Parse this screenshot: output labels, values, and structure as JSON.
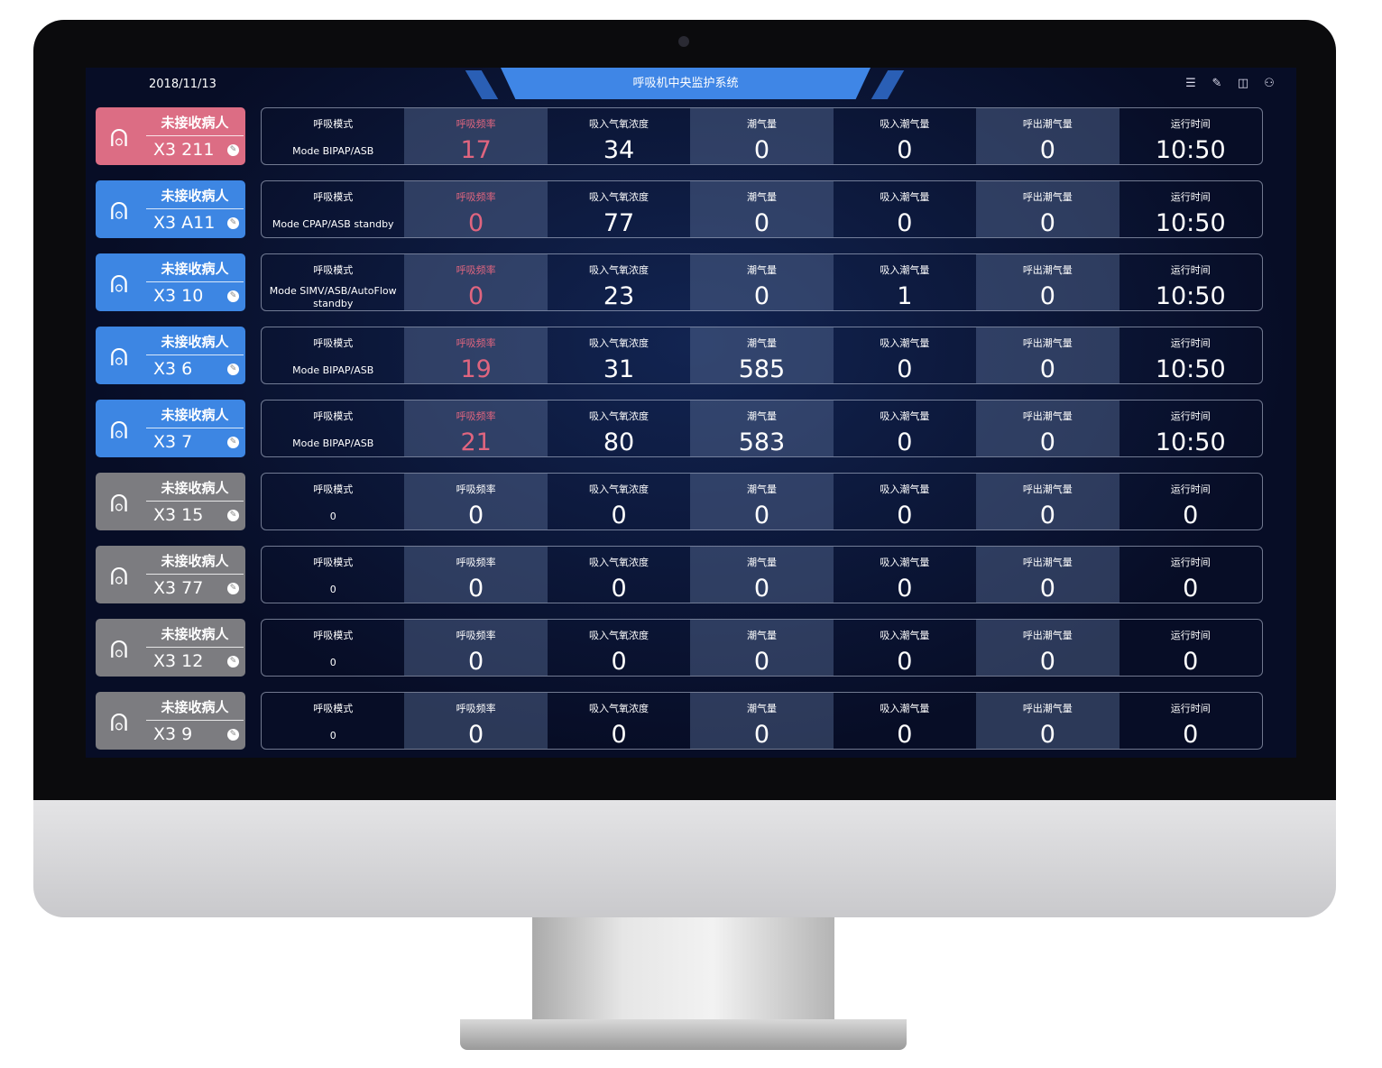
{
  "header": {
    "date": "2018/11/13",
    "title": "呼吸机中央监护系统",
    "icons": [
      "list-icon",
      "edit-icon",
      "layout-icon",
      "user-icon"
    ]
  },
  "labels": [
    "呼吸模式",
    "呼吸频率",
    "吸入气氧浓度",
    "潮气量",
    "吸入潮气量",
    "呼出潮气量",
    "运行时间"
  ],
  "colors": {
    "alarm": "#dc6d84",
    "active": "#3d86e3",
    "inactive": "#7c7c80",
    "alarm_text": "#e0657f"
  },
  "rows": [
    {
      "state": "alarm",
      "status": "未接收病人",
      "bed": "X3 211",
      "mode": "Mode BIPAP/ASB",
      "values": [
        "17",
        "34",
        "0",
        "0",
        "0",
        "10:50"
      ]
    },
    {
      "state": "active",
      "status": "未接收病人",
      "bed": "X3 A11",
      "mode": "Mode CPAP/ASB standby",
      "values": [
        "0",
        "77",
        "0",
        "0",
        "0",
        "10:50"
      ]
    },
    {
      "state": "active",
      "status": "未接收病人",
      "bed": "X3 10",
      "mode": "Mode SIMV/ASB/AutoFlow standby",
      "values": [
        "0",
        "23",
        "0",
        "1",
        "0",
        "10:50"
      ]
    },
    {
      "state": "active",
      "status": "未接收病人",
      "bed": "X3 6",
      "mode": "Mode BIPAP/ASB",
      "values": [
        "19",
        "31",
        "585",
        "0",
        "0",
        "10:50"
      ]
    },
    {
      "state": "active",
      "status": "未接收病人",
      "bed": "X3 7",
      "mode": "Mode BIPAP/ASB",
      "values": [
        "21",
        "80",
        "583",
        "0",
        "0",
        "10:50"
      ]
    },
    {
      "state": "inactive",
      "status": "未接收病人",
      "bed": "X3 15",
      "mode": "0",
      "values": [
        "0",
        "0",
        "0",
        "0",
        "0",
        "0"
      ]
    },
    {
      "state": "inactive",
      "status": "未接收病人",
      "bed": "X3 77",
      "mode": "0",
      "values": [
        "0",
        "0",
        "0",
        "0",
        "0",
        "0"
      ]
    },
    {
      "state": "inactive",
      "status": "未接收病人",
      "bed": "X3 12",
      "mode": "0",
      "values": [
        "0",
        "0",
        "0",
        "0",
        "0",
        "0"
      ]
    },
    {
      "state": "inactive",
      "status": "未接收病人",
      "bed": "X3 9",
      "mode": "0",
      "values": [
        "0",
        "0",
        "0",
        "0",
        "0",
        "0"
      ]
    }
  ]
}
